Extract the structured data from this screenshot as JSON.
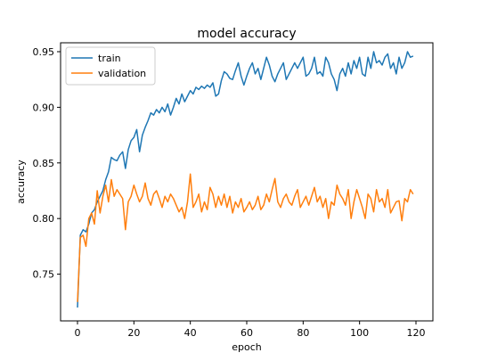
{
  "chart_data": {
    "type": "line",
    "title": "model accuracy",
    "xlabel": "epoch",
    "ylabel": "accuracy",
    "xlim": [
      -6,
      126
    ],
    "ylim": [
      0.708,
      0.958
    ],
    "xticks": [
      0,
      20,
      40,
      60,
      80,
      100,
      120
    ],
    "xtick_labels": [
      "0",
      "20",
      "40",
      "60",
      "80",
      "100",
      "120"
    ],
    "yticks": [
      0.75,
      0.8,
      0.85,
      0.9,
      0.95
    ],
    "ytick_labels": [
      "0.75",
      "0.80",
      "0.85",
      "0.90",
      "0.95"
    ],
    "grid": false,
    "legend_position": "top-left",
    "x": [
      0,
      1,
      2,
      3,
      4,
      5,
      6,
      7,
      8,
      9,
      10,
      11,
      12,
      13,
      14,
      15,
      16,
      17,
      18,
      19,
      20,
      21,
      22,
      23,
      24,
      25,
      26,
      27,
      28,
      29,
      30,
      31,
      32,
      33,
      34,
      35,
      36,
      37,
      38,
      39,
      40,
      41,
      42,
      43,
      44,
      45,
      46,
      47,
      48,
      49,
      50,
      51,
      52,
      53,
      54,
      55,
      56,
      57,
      58,
      59,
      60,
      61,
      62,
      63,
      64,
      65,
      66,
      67,
      68,
      69,
      70,
      71,
      72,
      73,
      74,
      75,
      76,
      77,
      78,
      79,
      80,
      81,
      82,
      83,
      84,
      85,
      86,
      87,
      88,
      89,
      90,
      91,
      92,
      93,
      94,
      95,
      96,
      97,
      98,
      99,
      100,
      101,
      102,
      103,
      104,
      105,
      106,
      107,
      108,
      109,
      110,
      111,
      112,
      113,
      114,
      115,
      116,
      117,
      118,
      119
    ],
    "series": [
      {
        "name": "train",
        "color": "#1f77b4",
        "values": [
          0.72,
          0.785,
          0.79,
          0.788,
          0.795,
          0.805,
          0.808,
          0.815,
          0.82,
          0.825,
          0.835,
          0.842,
          0.855,
          0.853,
          0.852,
          0.857,
          0.86,
          0.845,
          0.862,
          0.87,
          0.873,
          0.88,
          0.86,
          0.875,
          0.882,
          0.888,
          0.895,
          0.893,
          0.898,
          0.895,
          0.9,
          0.896,
          0.903,
          0.893,
          0.9,
          0.908,
          0.903,
          0.912,
          0.905,
          0.91,
          0.915,
          0.912,
          0.918,
          0.916,
          0.919,
          0.917,
          0.92,
          0.918,
          0.922,
          0.91,
          0.912,
          0.924,
          0.932,
          0.93,
          0.926,
          0.925,
          0.933,
          0.94,
          0.928,
          0.92,
          0.928,
          0.935,
          0.94,
          0.93,
          0.935,
          0.925,
          0.935,
          0.945,
          0.938,
          0.928,
          0.923,
          0.93,
          0.935,
          0.94,
          0.925,
          0.93,
          0.935,
          0.94,
          0.935,
          0.94,
          0.945,
          0.928,
          0.93,
          0.935,
          0.945,
          0.93,
          0.932,
          0.928,
          0.945,
          0.94,
          0.93,
          0.925,
          0.915,
          0.93,
          0.935,
          0.928,
          0.94,
          0.93,
          0.942,
          0.935,
          0.945,
          0.93,
          0.928,
          0.945,
          0.935,
          0.95,
          0.94,
          0.942,
          0.938,
          0.945,
          0.948,
          0.935,
          0.94,
          0.93,
          0.945,
          0.935,
          0.94,
          0.95,
          0.945,
          0.946
        ]
      },
      {
        "name": "validation",
        "color": "#ff7f0e",
        "values": [
          0.725,
          0.783,
          0.785,
          0.775,
          0.8,
          0.805,
          0.795,
          0.825,
          0.805,
          0.82,
          0.83,
          0.815,
          0.835,
          0.82,
          0.826,
          0.822,
          0.818,
          0.79,
          0.815,
          0.82,
          0.83,
          0.822,
          0.815,
          0.82,
          0.832,
          0.818,
          0.812,
          0.822,
          0.825,
          0.818,
          0.81,
          0.82,
          0.815,
          0.822,
          0.818,
          0.812,
          0.806,
          0.81,
          0.8,
          0.815,
          0.84,
          0.81,
          0.815,
          0.822,
          0.806,
          0.815,
          0.808,
          0.828,
          0.822,
          0.81,
          0.82,
          0.812,
          0.822,
          0.81,
          0.82,
          0.805,
          0.815,
          0.81,
          0.818,
          0.806,
          0.81,
          0.815,
          0.808,
          0.812,
          0.82,
          0.808,
          0.812,
          0.822,
          0.815,
          0.826,
          0.836,
          0.815,
          0.81,
          0.818,
          0.822,
          0.815,
          0.812,
          0.82,
          0.826,
          0.81,
          0.815,
          0.82,
          0.812,
          0.82,
          0.828,
          0.815,
          0.82,
          0.81,
          0.818,
          0.8,
          0.815,
          0.812,
          0.83,
          0.822,
          0.818,
          0.812,
          0.826,
          0.8,
          0.815,
          0.826,
          0.818,
          0.81,
          0.8,
          0.822,
          0.818,
          0.806,
          0.826,
          0.815,
          0.818,
          0.81,
          0.826,
          0.805,
          0.81,
          0.815,
          0.816,
          0.798,
          0.818,
          0.815,
          0.826,
          0.822
        ]
      }
    ]
  }
}
